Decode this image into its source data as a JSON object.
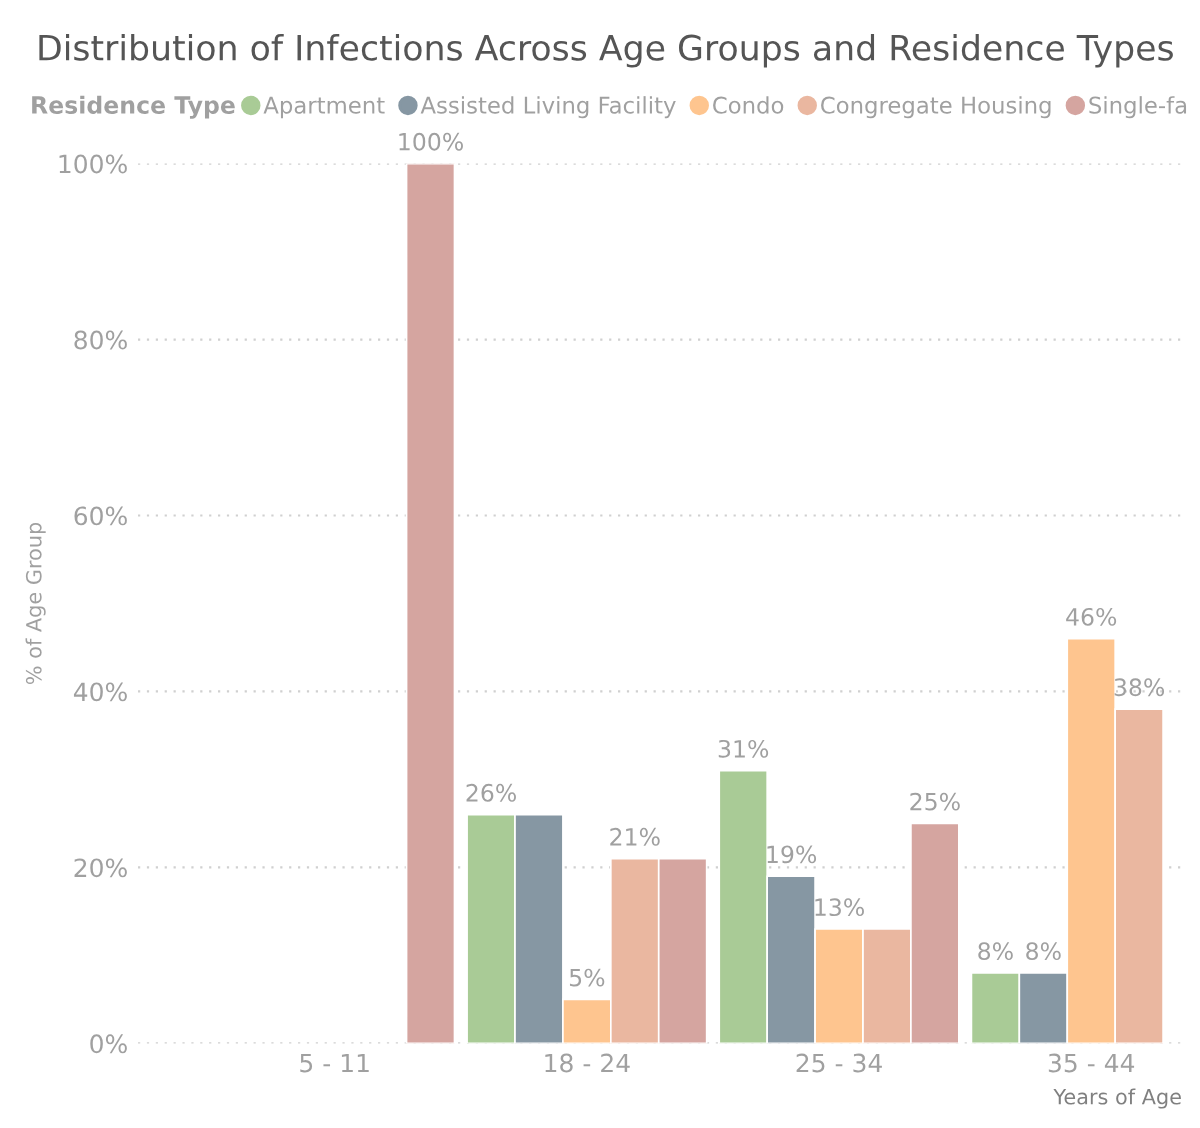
{
  "chart_data": {
    "type": "bar",
    "title": "Distribution of Infections Across Age Groups and Residence Types",
    "legend_title": "Residence Type",
    "xlabel": "Years of Age",
    "ylabel": "% of Age Group",
    "categories": [
      "5 - 11",
      "18 - 24",
      "25 - 34",
      "35 - 44"
    ],
    "series": [
      {
        "name": "Apartment",
        "color": "#a9cb96",
        "values": [
          null,
          26,
          31,
          8
        ],
        "value_labels": [
          null,
          "26%",
          "31%",
          "8%"
        ]
      },
      {
        "name": "Assisted Living Facility",
        "color": "#8697a3",
        "values": [
          null,
          26,
          19,
          8
        ],
        "value_labels": [
          null,
          null,
          "19%",
          "8%"
        ]
      },
      {
        "name": "Condo",
        "color": "#fec58f",
        "values": [
          null,
          5,
          13,
          46
        ],
        "value_labels": [
          null,
          "5%",
          "13%",
          "46%"
        ]
      },
      {
        "name": "Congregate Housing",
        "color": "#eab7a0",
        "values": [
          null,
          21,
          13,
          38
        ],
        "value_labels": [
          null,
          "21%",
          null,
          "38%"
        ]
      },
      {
        "name": "Single-fa",
        "color": "#d5a5a0",
        "values": [
          100,
          21,
          25,
          null
        ],
        "value_labels": [
          "100%",
          null,
          "25%",
          null
        ]
      }
    ],
    "ylim": [
      0,
      100
    ],
    "yticks": [
      {
        "value": 0,
        "label": "0%"
      },
      {
        "value": 20,
        "label": "20%"
      },
      {
        "value": 40,
        "label": "40%"
      },
      {
        "value": 60,
        "label": "60%"
      },
      {
        "value": 80,
        "label": "80%"
      },
      {
        "value": 100,
        "label": "100%"
      }
    ],
    "grid": "y",
    "legend": "top"
  }
}
